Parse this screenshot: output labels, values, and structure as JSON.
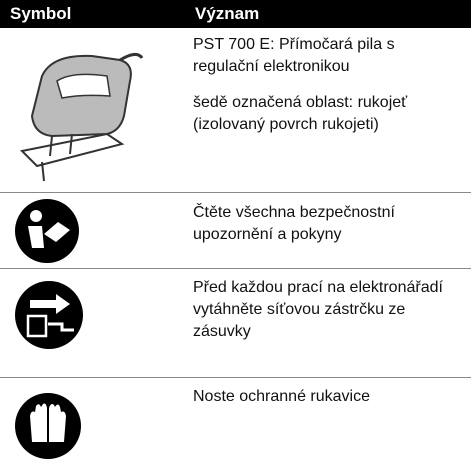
{
  "table": {
    "header": [
      "Symbol",
      "Význam"
    ],
    "rows": [
      [
        [
          "PST 700 E: Přímočará pila s",
          "regulační elektronikou"
        ],
        [
          "šedě označená oblast: rukojeť",
          "(izolovaný povrch rukojeti)"
        ]
      ],
      [
        [
          "Čtěte všechna bezpečnostní",
          "upozornění a pokyny"
        ]
      ],
      [
        [
          "Před každou prací na elektronářadí",
          "vytáhněte síťovou zástrčku ze",
          "zásuvky"
        ]
      ],
      [
        [
          "Noste ochranné rukavice"
        ]
      ]
    ]
  }
}
